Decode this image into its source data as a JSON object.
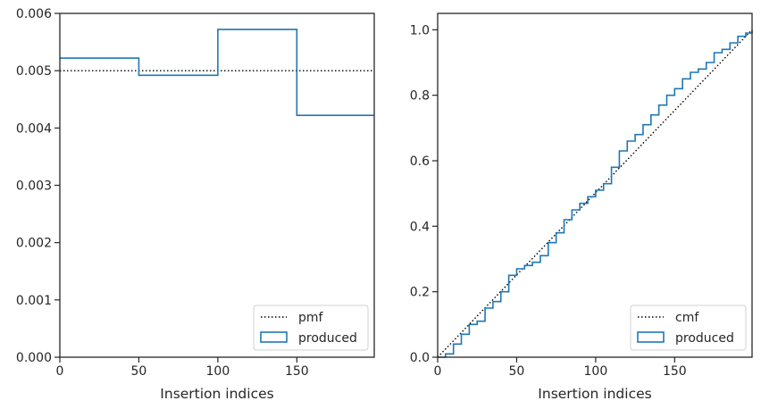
{
  "chart_data": [
    {
      "type": "line",
      "title": "",
      "xlabel": "Insertion indices",
      "ylabel": "",
      "xlim": [
        0,
        199
      ],
      "ylim": [
        0,
        0.006
      ],
      "xticks": [
        0,
        50,
        100,
        150
      ],
      "xtick_labels": [
        "0",
        "50",
        "100",
        "150"
      ],
      "yticks": [
        0,
        0.001,
        0.002,
        0.003,
        0.004,
        0.005,
        0.006
      ],
      "ytick_labels": [
        "0.000",
        "0.001",
        "0.002",
        "0.003",
        "0.004",
        "0.005",
        "0.006"
      ],
      "grid": false,
      "legend_position": "bottom-right",
      "series": [
        {
          "name": "pmf",
          "style": "dotted",
          "color": "#000000",
          "x": [
            0,
            199
          ],
          "y": [
            0.005,
            0.005
          ]
        },
        {
          "name": "produced",
          "style": "step-histogram",
          "color": "#1f77b4",
          "bin_edges": [
            0,
            50,
            100,
            150,
            199
          ],
          "values": [
            0.00522,
            0.00492,
            0.00572,
            0.00422
          ]
        }
      ]
    },
    {
      "type": "line",
      "title": "",
      "xlabel": "Insertion indices",
      "ylabel": "",
      "xlim": [
        0,
        199
      ],
      "ylim": [
        0,
        1.05
      ],
      "xticks": [
        0,
        50,
        100,
        150
      ],
      "xtick_labels": [
        "0",
        "50",
        "100",
        "150"
      ],
      "yticks": [
        0,
        0.2,
        0.4,
        0.6,
        0.8,
        1.0
      ],
      "ytick_labels": [
        "0.0",
        "0.2",
        "0.4",
        "0.6",
        "0.8",
        "1.0"
      ],
      "grid": false,
      "legend_position": "bottom-right",
      "series": [
        {
          "name": "cmf",
          "style": "dotted",
          "color": "#000000",
          "x": [
            0,
            199
          ],
          "y": [
            0,
            1.0
          ]
        },
        {
          "name": "produced",
          "style": "step",
          "color": "#1f77b4",
          "x": [
            0,
            5,
            10,
            15,
            20,
            25,
            30,
            35,
            40,
            45,
            50,
            55,
            60,
            65,
            70,
            75,
            80,
            85,
            90,
            95,
            100,
            105,
            110,
            115,
            120,
            125,
            130,
            135,
            140,
            145,
            150,
            155,
            160,
            165,
            170,
            175,
            180,
            185,
            190,
            195,
            199
          ],
          "y": [
            0.0,
            0.01,
            0.04,
            0.07,
            0.1,
            0.11,
            0.15,
            0.17,
            0.2,
            0.25,
            0.27,
            0.28,
            0.29,
            0.31,
            0.35,
            0.38,
            0.42,
            0.45,
            0.47,
            0.49,
            0.51,
            0.53,
            0.58,
            0.63,
            0.66,
            0.68,
            0.71,
            0.74,
            0.77,
            0.8,
            0.82,
            0.85,
            0.87,
            0.88,
            0.9,
            0.93,
            0.94,
            0.96,
            0.98,
            0.99,
            1.0
          ]
        }
      ]
    }
  ]
}
